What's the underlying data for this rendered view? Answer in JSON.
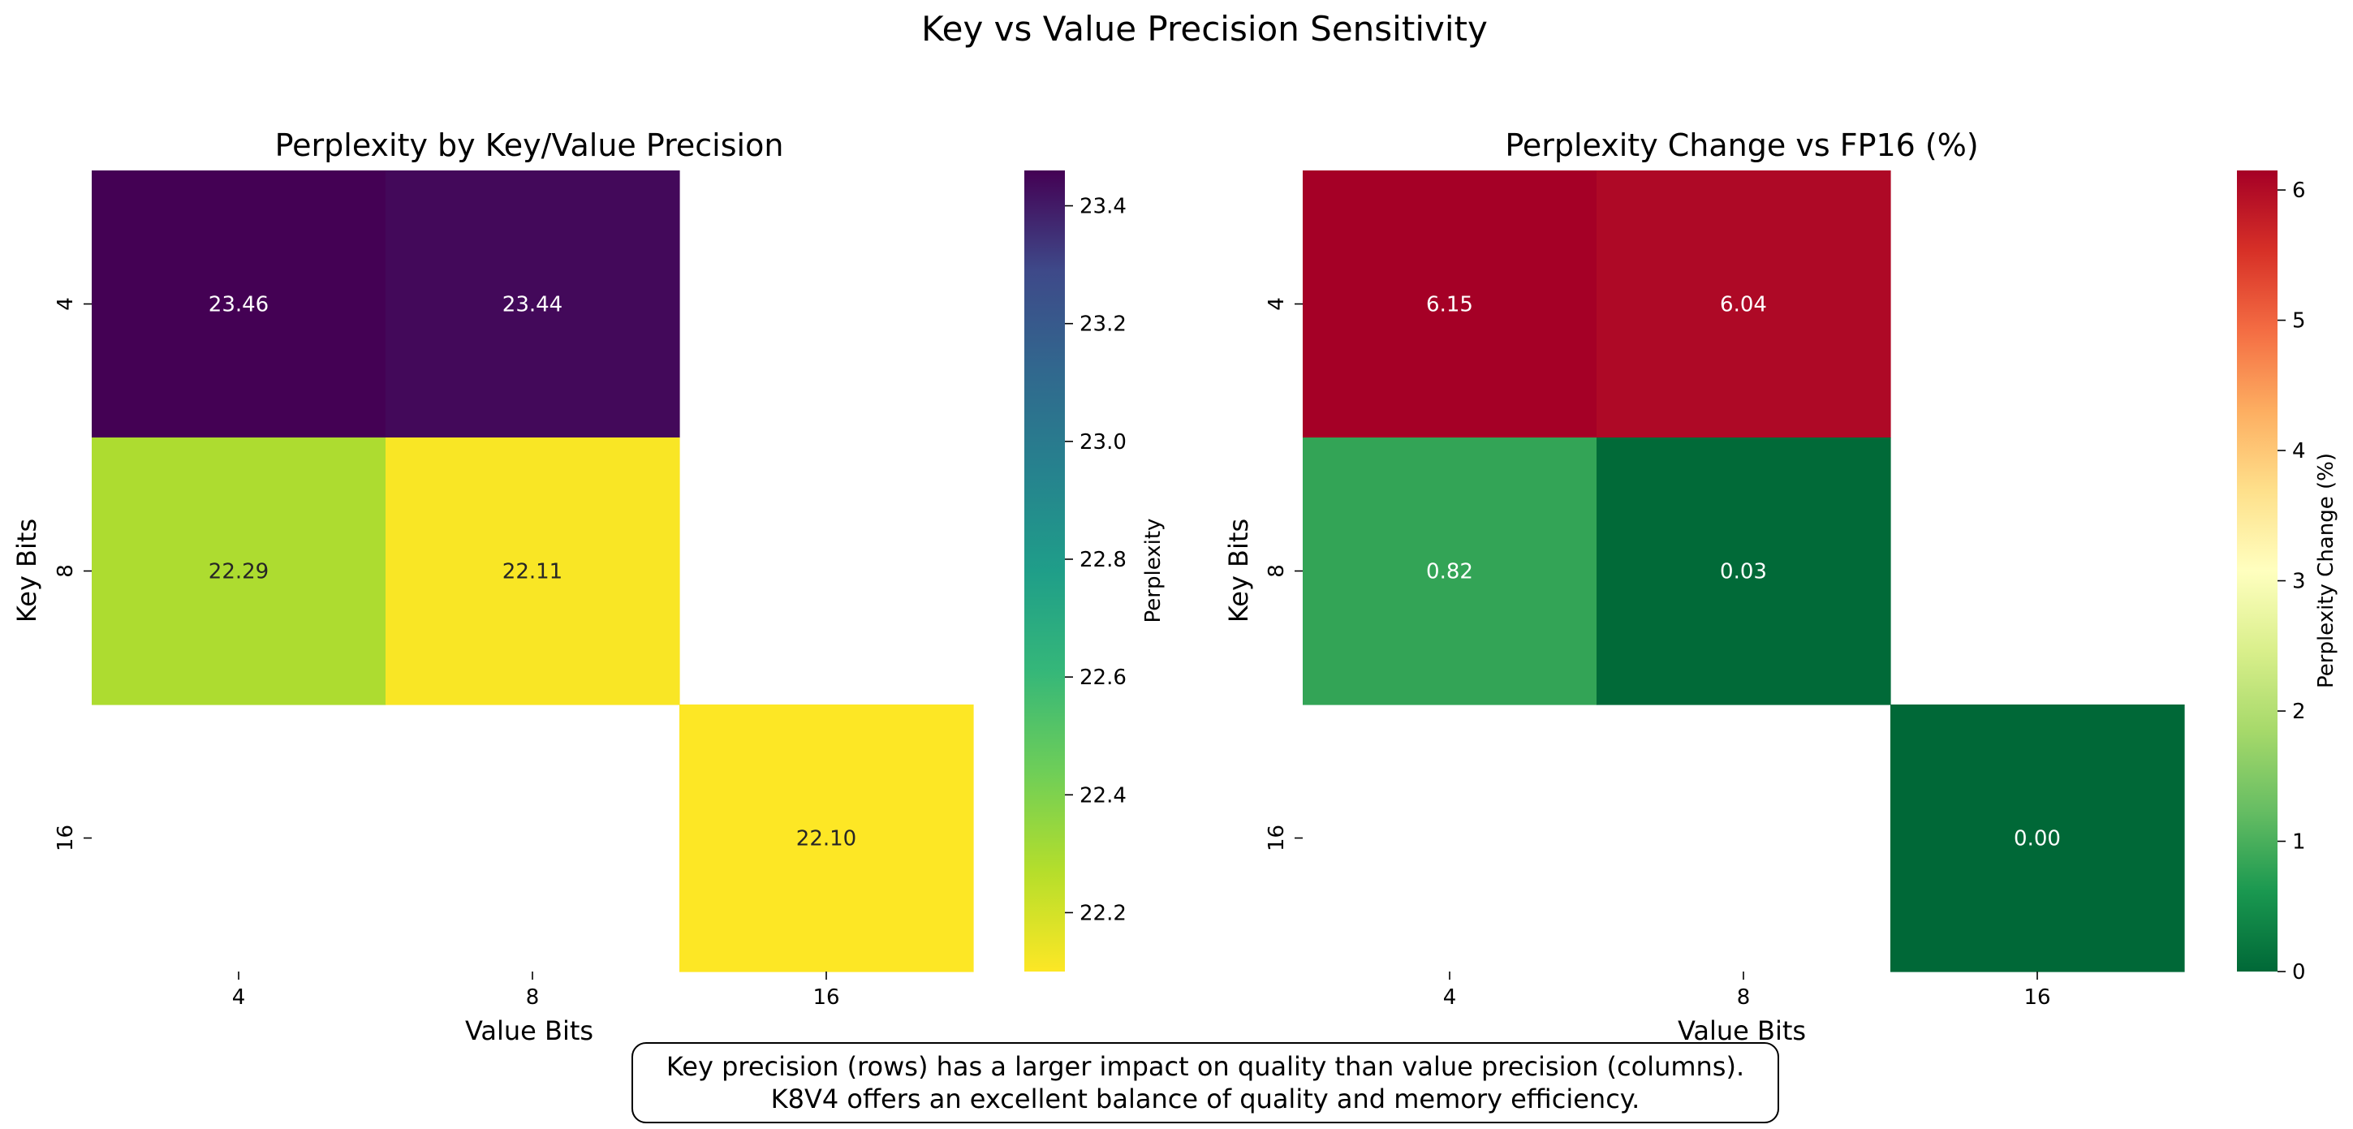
{
  "figure": {
    "title": "Key vs Value Precision Sensitivity",
    "note_lines": [
      "Key precision (rows) has a larger impact on quality than value precision (columns).",
      "K8V4 offers an excellent balance of quality and memory efficiency."
    ]
  },
  "chart_data": [
    {
      "type": "heatmap",
      "title": "Perplexity by Key/Value Precision",
      "xlabel": "Value Bits",
      "ylabel": "Key Bits",
      "x_categories": [
        "4",
        "8",
        "16"
      ],
      "y_categories": [
        "4",
        "8",
        "16"
      ],
      "values": [
        [
          23.46,
          23.44,
          null
        ],
        [
          22.29,
          22.11,
          null
        ],
        [
          null,
          null,
          22.1
        ]
      ],
      "value_labels": [
        [
          "23.46",
          "23.44",
          ""
        ],
        [
          "22.29",
          "22.11",
          ""
        ],
        [
          "",
          "",
          "22.10"
        ]
      ],
      "colormap": "viridis (reversed)",
      "colorbar": {
        "label": "Perplexity",
        "range": [
          22.1,
          23.46
        ],
        "ticks": [
          "22.2",
          "22.4",
          "22.6",
          "22.8",
          "23.0",
          "23.2",
          "23.4"
        ]
      }
    },
    {
      "type": "heatmap",
      "title": "Perplexity Change vs FP16 (%)",
      "xlabel": "Value Bits",
      "ylabel": "Key Bits",
      "x_categories": [
        "4",
        "8",
        "16"
      ],
      "y_categories": [
        "4",
        "8",
        "16"
      ],
      "values": [
        [
          6.15,
          6.04,
          null
        ],
        [
          0.82,
          0.03,
          null
        ],
        [
          null,
          null,
          0.0
        ]
      ],
      "value_labels": [
        [
          "6.15",
          "6.04",
          ""
        ],
        [
          "0.82",
          "0.03",
          ""
        ],
        [
          "",
          "",
          "0.00"
        ]
      ],
      "colormap": "RdYlGn (reversed)",
      "colorbar": {
        "label": "Perplexity Change (%)",
        "range": [
          0,
          6.15
        ],
        "ticks": [
          "0",
          "1",
          "2",
          "3",
          "4",
          "5",
          "6"
        ]
      }
    }
  ]
}
